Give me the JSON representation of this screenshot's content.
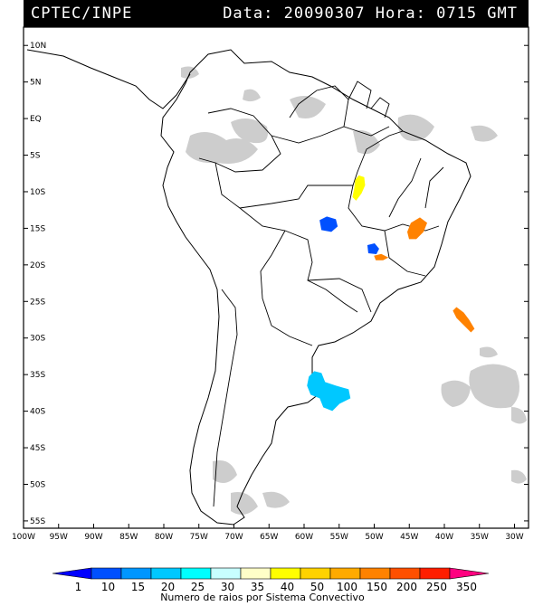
{
  "header": {
    "left": "CPTEC/INPE",
    "right": "Data: 20090307 Hora: 0715 GMT"
  },
  "map": {
    "lat_ticks": [
      "10N",
      "5N",
      "EQ",
      "5S",
      "10S",
      "15S",
      "20S",
      "25S",
      "30S",
      "35S",
      "40S",
      "45S",
      "50S",
      "55S"
    ],
    "lon_ticks": [
      "100W",
      "95W",
      "90W",
      "85W",
      "80W",
      "75W",
      "70W",
      "65W",
      "60W",
      "55W",
      "50W",
      "45W",
      "40W",
      "35W",
      "30W"
    ],
    "lon_range": [
      -100,
      -28
    ],
    "lat_range": [
      -56,
      12.5
    ]
  },
  "colorbar": {
    "labels": [
      "1",
      "10",
      "15",
      "20",
      "25",
      "30",
      "35",
      "40",
      "50",
      "100",
      "150",
      "200",
      "250",
      "350"
    ],
    "colors": [
      "#0000ff",
      "#0050ff",
      "#0096ff",
      "#00c8ff",
      "#00ffff",
      "#c8ffff",
      "#ffffc8",
      "#ffff00",
      "#ffd200",
      "#ffaa00",
      "#ff8200",
      "#ff5000",
      "#ff1e00",
      "#ff0080"
    ],
    "title": "Numero de raios por Sistema Convectivo"
  },
  "systems": [
    {
      "color": "#ffff00",
      "lon": -52.2,
      "lat": -9.5
    },
    {
      "color": "#0050ff",
      "lon": -56.5,
      "lat": -14.5
    },
    {
      "color": "#ff8200",
      "lon": -44.0,
      "lat": -15.0
    },
    {
      "color": "#0050ff",
      "lon": -50.2,
      "lat": -17.8
    },
    {
      "color": "#ff8200",
      "lon": -49.0,
      "lat": -19.0
    },
    {
      "color": "#ff8200",
      "lon": -37.5,
      "lat": -27.5
    },
    {
      "color": "#00c8ff",
      "lon": -57.0,
      "lat": -37.5
    }
  ]
}
